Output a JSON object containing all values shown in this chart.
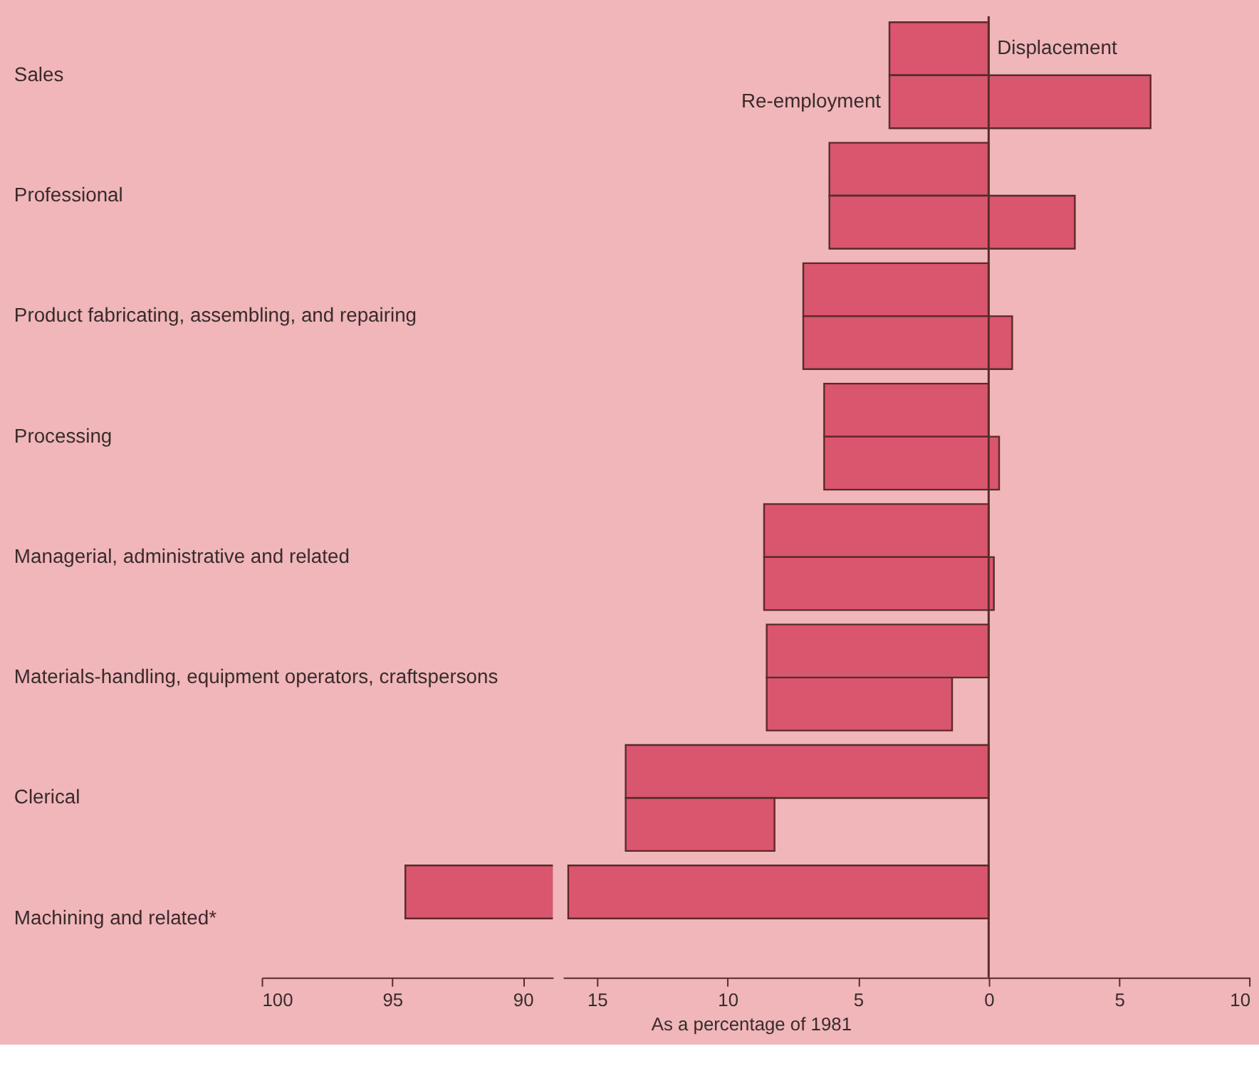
{
  "chart_data": [
    {
      "type": "bar",
      "orientation": "horizontal",
      "categories": [
        "Sales",
        "Professional",
        "Product fabricating, assembling, and repairing",
        "Processing",
        "Managerial, administrative and related",
        "Materials-handling, equipment operators, craftspersons",
        "Clerical",
        "Machining and related*"
      ],
      "series": [
        {
          "color": "#d9566e",
          "values": [
            null,
            null,
            null,
            null,
            null,
            null,
            null,
            -94.5
          ]
        }
      ],
      "xlim": [
        -100,
        -88.85
      ],
      "xticks": [
        {
          "value": -100,
          "label": "100"
        },
        {
          "value": -95,
          "label": "95"
        },
        {
          "value": -90,
          "label": "90"
        }
      ],
      "legend": false,
      "grid": false
    },
    {
      "type": "bar",
      "orientation": "horizontal",
      "xlabel": "As a percentage of 1981",
      "tick_labels": "x",
      "categories": [
        null,
        null,
        null,
        null,
        null,
        null,
        null,
        null
      ],
      "series": [
        {
          "name": "Displacement",
          "color": "#d9566e",
          "values": [
            -3.8,
            -6.1,
            -7.1,
            -6.3,
            -8.6,
            -8.5,
            -13.9,
            -16.1
          ]
        },
        {
          "name": "Re-employment",
          "color": "#d9566e",
          "base": [
            -3.8,
            -6.1,
            -7.1,
            -6.3,
            -8.6,
            -8.5,
            -13.9,
            null
          ],
          "values": [
            10.0,
            9.4,
            8.0,
            6.7,
            8.8,
            7.1,
            5.7,
            null
          ]
        }
      ],
      "xlim": [
        -16.3,
        10
      ],
      "xticks": [
        {
          "value": -15,
          "label": "15"
        },
        {
          "value": -10,
          "label": "10"
        },
        {
          "value": -5,
          "label": "5"
        },
        0,
        5,
        10
      ],
      "ref_lines": [
        {
          "axis": "x",
          "value": 0,
          "color": "#5a2a2a"
        }
      ],
      "legend": false,
      "grid": false
    }
  ]
}
